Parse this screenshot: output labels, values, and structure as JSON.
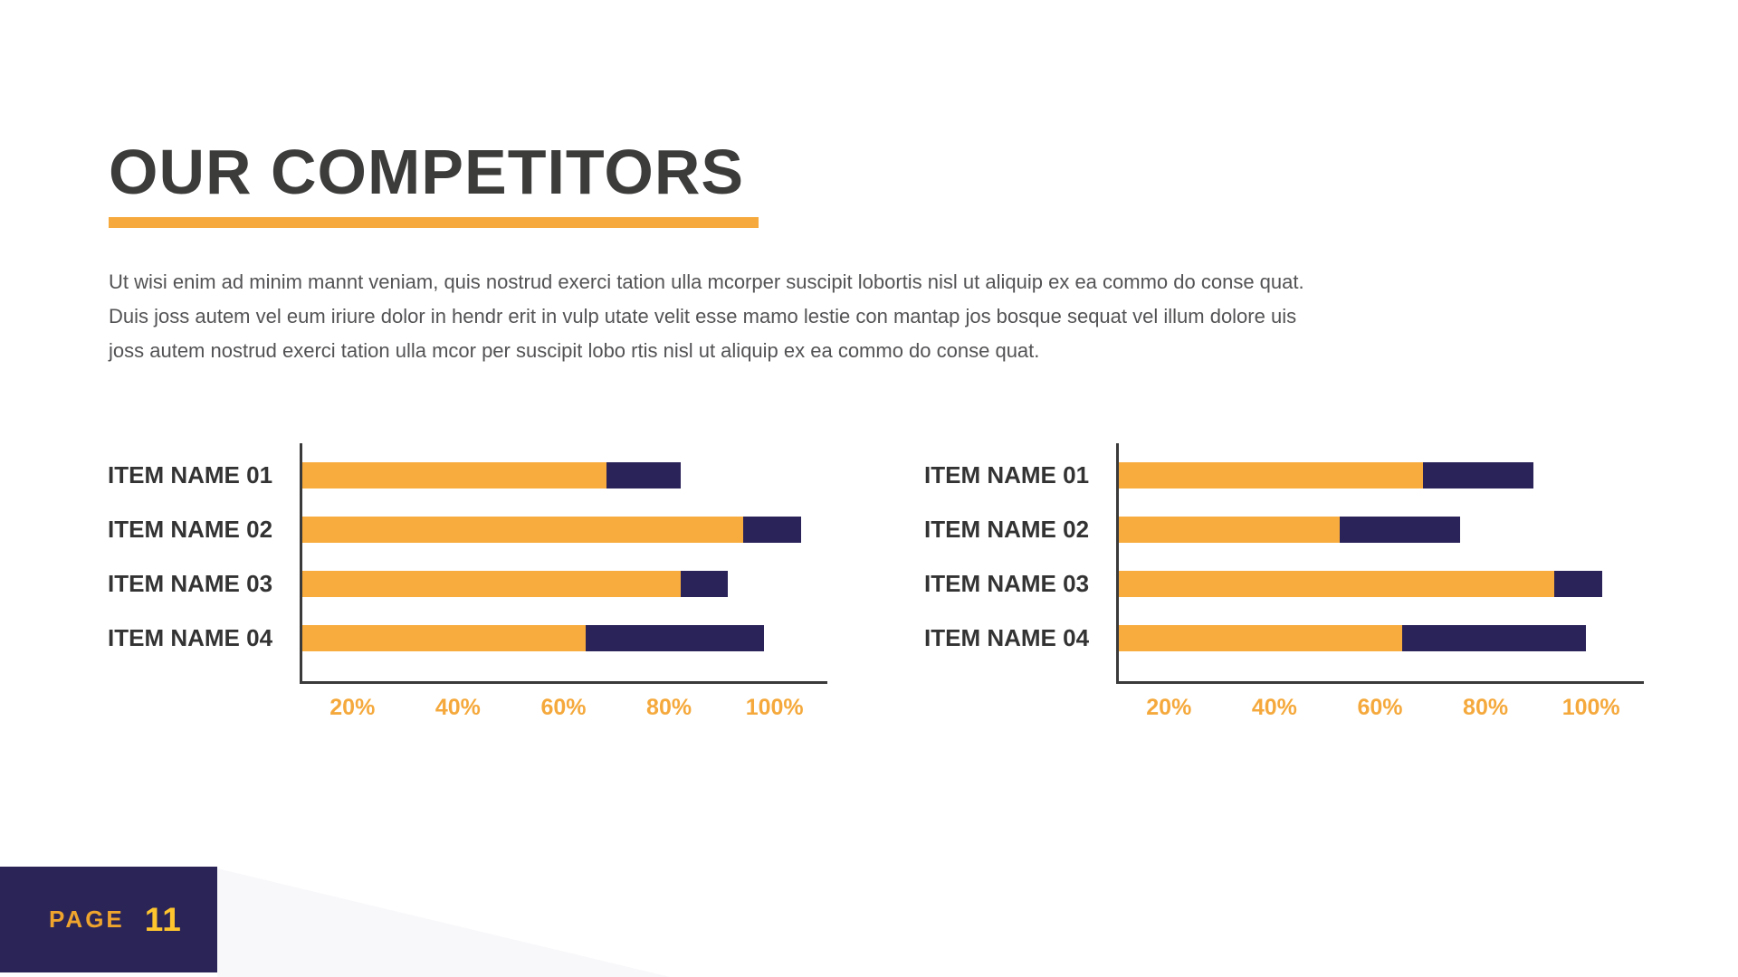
{
  "slide": {
    "title": "OUR COMPETITORS",
    "paragraph_lines": [
      "Ut wisi enim ad minim mannt veniam, quis nostrud exerci tation ulla mcorper suscipit lobortis nisl ut aliquip ex ea commo do conse quat.",
      "Duis joss autem vel eum iriure dolor in hendr erit in vulp utate velit esse mamo lestie con mantap jos bosque sequat vel illum dolore uis",
      "joss autem nostrud exerci tation ulla mcor per suscipit lobo rtis nisl ut aliquip ex ea commo do conse quat."
    ],
    "page_label": "PAGE",
    "page_number": "11"
  },
  "colors": {
    "title_text": "#3c3c3b",
    "body_text": "#535355",
    "accent_orange": "#F6A93C",
    "bar_orange": "#F8AC3E",
    "bar_navy": "#2A2359",
    "axis": "#3a3a3a",
    "tick_text": "#F5A93C",
    "category_text": "#333333",
    "badge_bg": "#2B2557",
    "badge_label_text": "#EFA52D",
    "badge_number_text": "#FFC52F",
    "deco_shape": "#F8F8FB"
  },
  "chart_data": [
    {
      "type": "bar",
      "orientation": "horizontal",
      "stacked": true,
      "position": "left",
      "title": "",
      "categories": [
        "ITEM NAME 01",
        "ITEM NAME 02",
        "ITEM NAME 03",
        "ITEM NAME 04"
      ],
      "series": [
        {
          "name": "series-1",
          "color": "#F8AC3E",
          "values": [
            58,
            84,
            72,
            54
          ]
        },
        {
          "name": "series-2",
          "color": "#2A2359",
          "values": [
            14,
            11,
            9,
            34
          ]
        }
      ],
      "totals": [
        72,
        95,
        81,
        88
      ],
      "x_ticks": [
        "20%",
        "40%",
        "60%",
        "80%",
        "100%"
      ],
      "xlim": [
        0,
        100
      ],
      "grid": false,
      "legend": false
    },
    {
      "type": "bar",
      "orientation": "horizontal",
      "stacked": true,
      "position": "right",
      "title": "",
      "categories": [
        "ITEM NAME 01",
        "ITEM NAME 02",
        "ITEM NAME 03",
        "ITEM NAME 04"
      ],
      "series": [
        {
          "name": "series-1",
          "color": "#F8AC3E",
          "values": [
            58,
            42,
            83,
            54
          ]
        },
        {
          "name": "series-2",
          "color": "#2A2359",
          "values": [
            21,
            23,
            9,
            35
          ]
        }
      ],
      "totals": [
        79,
        65,
        92,
        89
      ],
      "x_ticks": [
        "20%",
        "40%",
        "60%",
        "80%",
        "100%"
      ],
      "xlim": [
        0,
        100
      ],
      "grid": false,
      "legend": false
    }
  ]
}
